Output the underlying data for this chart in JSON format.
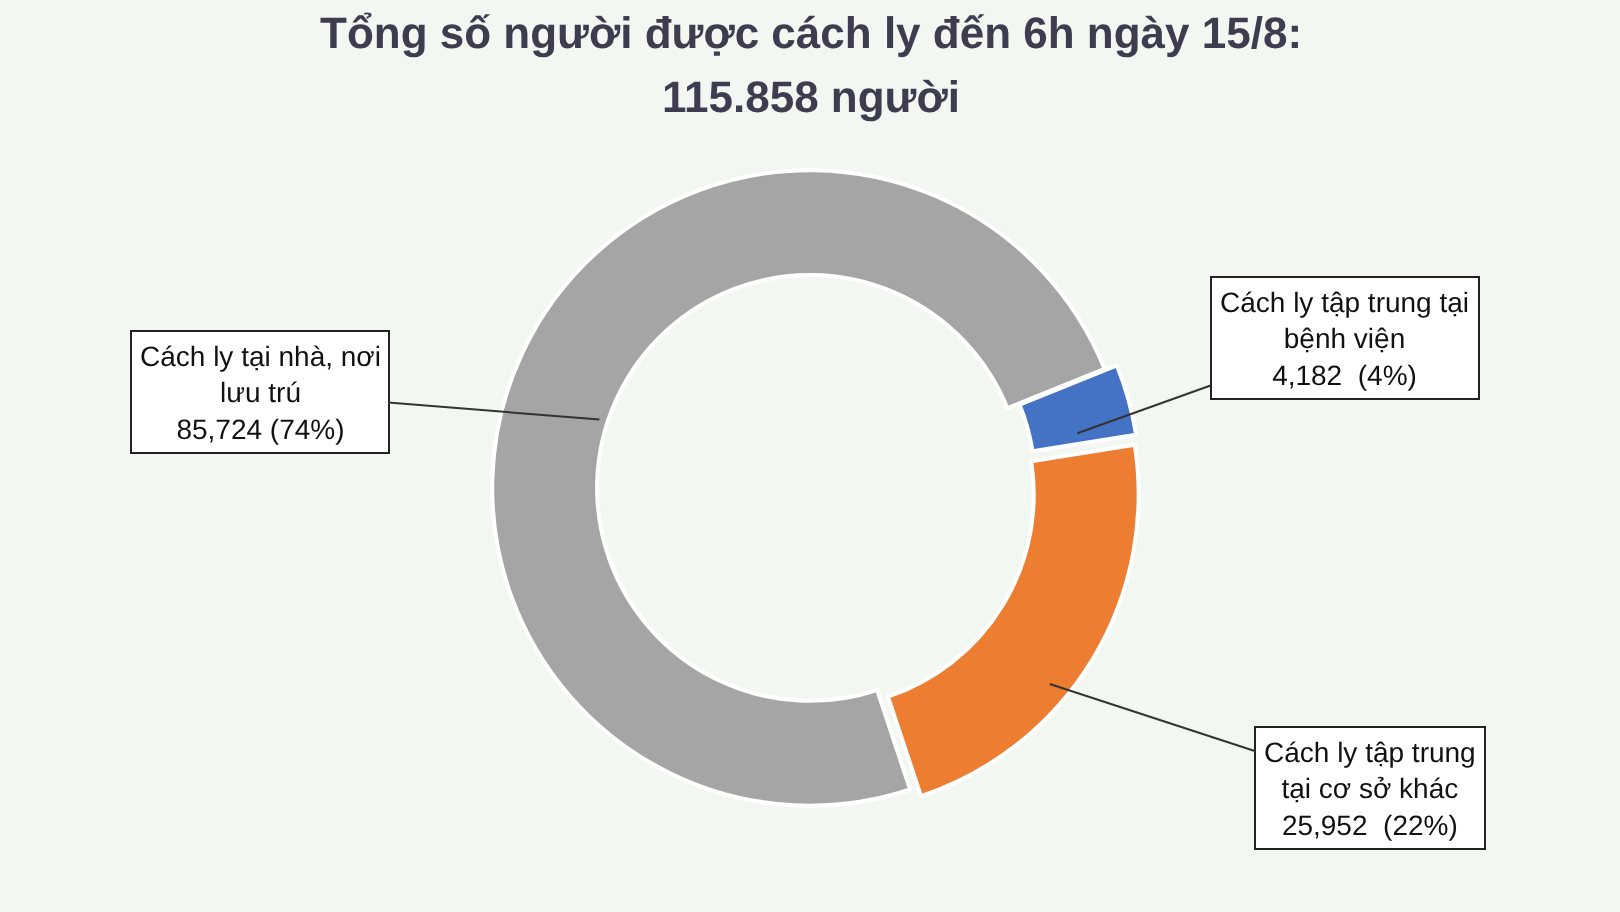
{
  "chart_data": {
    "type": "donut",
    "title": "Tổng số người được cách ly đến 6h ngày 15/8:",
    "subtitle": "115.858 người",
    "categories": [
      "Cách ly tập trung tại bệnh viện",
      "Cách ly tập trung tại cơ sở khác",
      "Cách ly tại nhà, nơi lưu trú"
    ],
    "values": [
      4182,
      25952,
      85724
    ],
    "colors": [
      "#4472c4",
      "#ed7d31",
      "#a5a5a5"
    ],
    "value_labels": [
      "4,182  (4%)",
      "25,952  (22%)",
      "85,724 (74%)"
    ]
  }
}
